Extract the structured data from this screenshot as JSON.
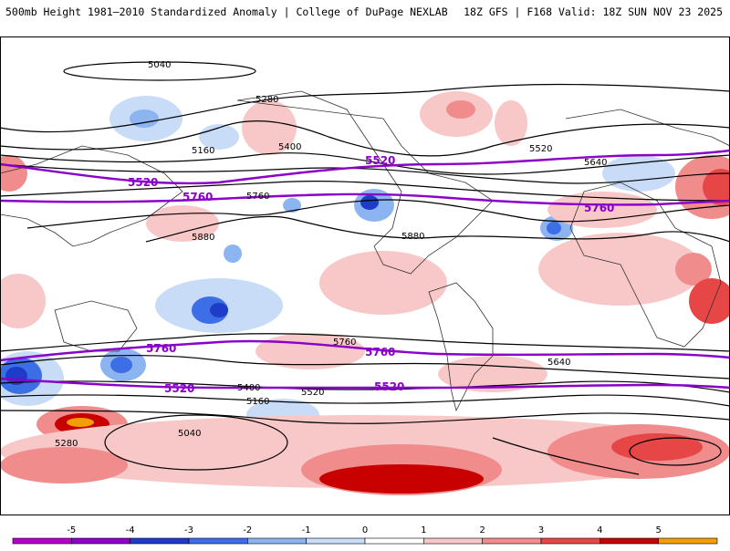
{
  "header": {
    "title_left": "500mb Height 1981–2010 Standardized Anomaly | College of DuPage NEXLAB",
    "title_right": "18Z GFS | F168 Valid: 18Z SUN NOV 23 2025"
  },
  "contours": {
    "black_labels": [
      "5040",
      "5280",
      "5160",
      "5400",
      "5520",
      "5640",
      "5760",
      "5880",
      "5040",
      "5280",
      "5160",
      "5400",
      "5520",
      "5640",
      "5760",
      "5880"
    ],
    "purple_labels": [
      "5520",
      "5760"
    ]
  },
  "colorbar": {
    "ticks": [
      "-5",
      "-4",
      "-3",
      "-2",
      "-1",
      "0",
      "1",
      "2",
      "3",
      "4",
      "5"
    ],
    "colors": [
      "#b400c8",
      "#8c00c8",
      "#1e3cc8",
      "#3c6ee6",
      "#8cb4f0",
      "#c8dcf8",
      "#ffffff",
      "#f8c8c8",
      "#f08c8c",
      "#e64646",
      "#c80000",
      "#f0a000"
    ]
  },
  "colors": {
    "neg_light": "#c8dcf8",
    "neg_mid": "#8cb4f0",
    "neg_dark": "#3c6ee6",
    "neg_deep": "#1e3cc8",
    "pos_light": "#f8c8c8",
    "pos_mid": "#f08c8c",
    "pos_dark": "#e64646",
    "pos_deep": "#c80000",
    "pos_max": "#f0a000",
    "purple_contour": "#8a00c8"
  }
}
